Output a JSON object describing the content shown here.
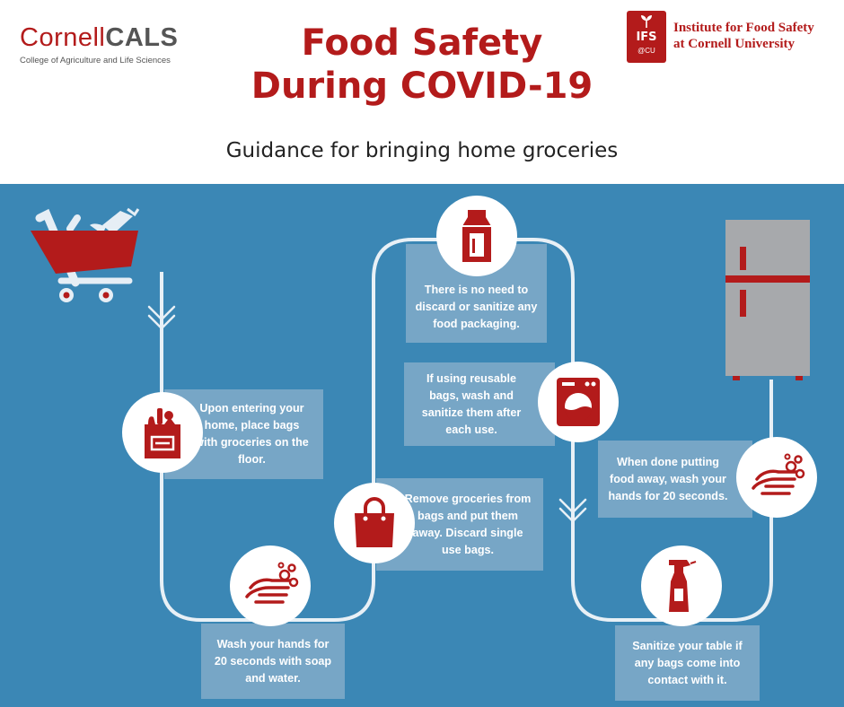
{
  "header": {
    "cornell_brand": "Cornell",
    "cornell_brand_bold": "CALS",
    "cornell_tagline": "College of Agriculture and Life Sciences",
    "title_line1": "Food Safety",
    "title_line2": "During COVID-19",
    "subtitle": "Guidance for bringing home groceries",
    "ifs_badge": "IFS",
    "ifs_badge_sub": "@CU",
    "ifs_name_line1": "Institute for Food Safety",
    "ifs_name_line2": "at Cornell University"
  },
  "steps": [
    {
      "id": "place-bags",
      "icon": "grocery-bag-icon",
      "text": "Upon entering your home, place bags with groceries on the floor."
    },
    {
      "id": "wash-hands-1",
      "icon": "hand-washing-icon",
      "text": "Wash your hands for 20 seconds with soap and water."
    },
    {
      "id": "remove-groceries",
      "icon": "shopping-bag-icon",
      "text": "Remove groceries from bags and put them away. Discard single use bags."
    },
    {
      "id": "reusable-bags",
      "icon": "washing-machine-icon",
      "text": "If using reusable bags, wash and sanitize them after each use."
    },
    {
      "id": "packaging",
      "icon": "milk-carton-icon",
      "text": "There is no need to discard or sanitize any food packaging."
    },
    {
      "id": "sanitize-table",
      "icon": "spray-bottle-icon",
      "text": "Sanitize your table if any bags come into contact with it."
    },
    {
      "id": "wash-hands-2",
      "icon": "hand-washing-icon",
      "text": "When done putting food away, wash your hands for 20 seconds."
    }
  ],
  "colors": {
    "brand_red": "#b31b1b",
    "panel_blue": "#3b87b5",
    "card_blue": "#77a6c6",
    "path_line": "#e8f0f6"
  }
}
